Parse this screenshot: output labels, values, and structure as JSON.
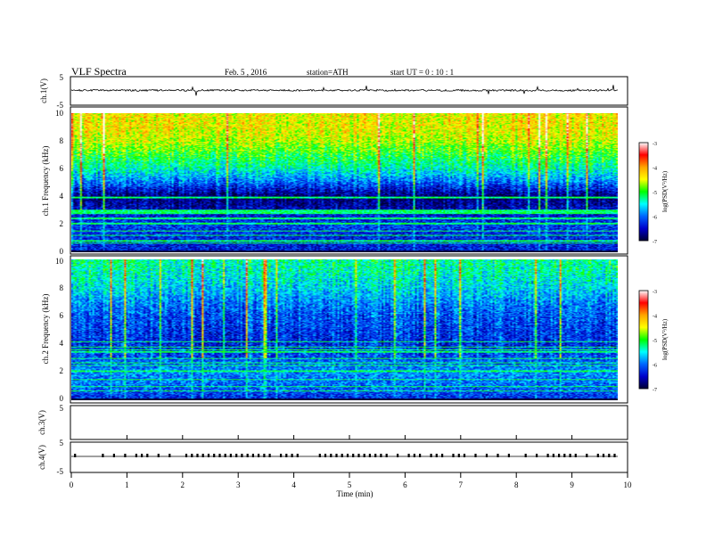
{
  "header": {
    "title": "VLF Spectra",
    "date": "Feb. 5 , 2016",
    "station": "station=ATH",
    "start": "start UT = 0 : 10 : 1"
  },
  "colorbar": {
    "label": "log(PSD(V²/Hz)",
    "ticks": [
      "-3",
      "-4",
      "-5",
      "-6",
      "-7"
    ],
    "colors": [
      "#ffffff",
      "#ff0000",
      "#ffa500",
      "#ffff00",
      "#00ff00",
      "#00ffff",
      "#0066ff",
      "#0000cc",
      "#000033"
    ]
  },
  "chart_data": [
    {
      "type": "line",
      "panel": "ch.1 waveform",
      "ylabel": "ch.1(V)",
      "ylim": [
        -5,
        5
      ],
      "yticks": [
        "5",
        "-5"
      ],
      "xlim": [
        0,
        10
      ],
      "description_values": {
        "baseline_V": 0.2,
        "noise_amplitude_V": 0.3
      }
    },
    {
      "type": "heatmap",
      "panel": "ch.1 spectrogram",
      "ylabel": "ch.1 Frequency (kHz)",
      "ylim": [
        0,
        10
      ],
      "yticks": [
        "0",
        "2",
        "4",
        "6",
        "8",
        "10"
      ],
      "xlim": [
        0,
        9.8
      ],
      "zlim": [
        -7,
        -3
      ],
      "profile_khz": [
        0,
        1,
        2,
        3,
        4,
        5,
        6,
        7,
        8,
        9,
        10
      ],
      "profile_logpsd": [
        -6.4,
        -6.3,
        -6.2,
        -6.5,
        -6.8,
        -6.0,
        -5.4,
        -5.0,
        -4.6,
        -4.4,
        -4.4
      ]
    },
    {
      "type": "heatmap",
      "panel": "ch.2 spectrogram",
      "ylabel": "ch.2 Frequency (kHz)",
      "ylim": [
        0,
        10
      ],
      "yticks": [
        "0",
        "2",
        "4",
        "6",
        "8",
        "10"
      ],
      "xlim": [
        0,
        9.8
      ],
      "zlim": [
        -7,
        -3
      ],
      "profile_khz": [
        0,
        1,
        2,
        3,
        4,
        5,
        6,
        7,
        8,
        9,
        10
      ],
      "profile_logpsd": [
        -6.3,
        -6.0,
        -5.9,
        -6.1,
        -6.3,
        -6.2,
        -6.1,
        -5.9,
        -5.6,
        -5.4,
        -5.3
      ]
    },
    {
      "type": "line",
      "panel": "ch.3 waveform",
      "ylabel": "ch.3(V)",
      "ylim": [
        -5,
        5
      ],
      "yticks": [
        "5"
      ],
      "xlim": [
        0,
        10
      ]
    },
    {
      "type": "line",
      "panel": "ch.4 waveform",
      "ylabel": "ch.4(V)",
      "ylim": [
        -5,
        5
      ],
      "yticks": [
        "5",
        "-5"
      ],
      "xlim": [
        0,
        10
      ],
      "pulse_times_min": [
        0.05,
        0.55,
        0.75,
        0.95,
        1.15,
        1.25,
        1.35,
        1.55,
        1.75,
        2.05,
        2.15,
        2.25,
        2.35,
        2.45,
        2.55,
        2.65,
        2.75,
        2.85,
        2.95,
        3.05,
        3.15,
        3.25,
        3.35,
        3.45,
        3.55,
        3.75,
        3.85,
        3.95,
        4.05,
        4.45,
        4.55,
        4.65,
        4.75,
        4.85,
        4.95,
        5.05,
        5.15,
        5.25,
        5.35,
        5.45,
        5.55,
        5.65,
        5.85,
        6.05,
        6.15,
        6.25,
        6.45,
        6.55,
        6.65,
        6.85,
        6.95,
        7.05,
        7.25,
        7.45,
        7.65,
        7.85,
        8.15,
        8.35,
        8.55,
        8.65,
        8.75,
        8.85,
        8.95,
        9.05,
        9.25,
        9.45,
        9.55,
        9.65,
        9.75
      ]
    }
  ],
  "xaxis": {
    "label": "Time (min)",
    "ticks": [
      "0",
      "1",
      "2",
      "3",
      "4",
      "5",
      "6",
      "7",
      "8",
      "9",
      "10"
    ]
  }
}
